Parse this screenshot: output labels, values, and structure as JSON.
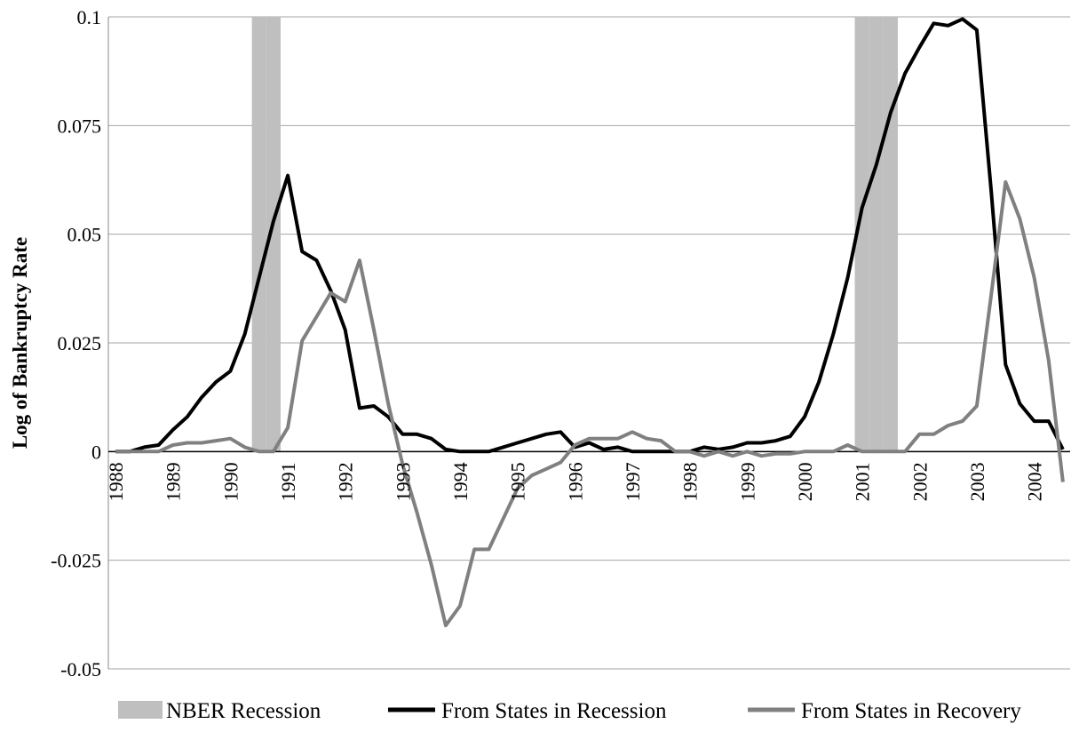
{
  "chart_data": {
    "type": "line",
    "y_label": "Log of Bankruptcy Rate",
    "categories": [
      "1988",
      null,
      null,
      null,
      "1989",
      null,
      null,
      null,
      "1990",
      null,
      null,
      null,
      "1991",
      null,
      null,
      null,
      "1992",
      null,
      null,
      null,
      "1993",
      null,
      null,
      null,
      "1994",
      null,
      null,
      null,
      "1995",
      null,
      null,
      null,
      "1996",
      null,
      null,
      null,
      "1997",
      null,
      null,
      null,
      "1998",
      null,
      null,
      null,
      "1999",
      null,
      null,
      null,
      "2000",
      null,
      null,
      null,
      "2001",
      null,
      null,
      null,
      "2002",
      null,
      null,
      null,
      "2003",
      null,
      null,
      null,
      "2004",
      null,
      null
    ],
    "series": [
      {
        "name": "NBER Recession",
        "type": "bar",
        "color": "#bfbfbf",
        "values": [
          null,
          null,
          null,
          null,
          null,
          null,
          null,
          null,
          null,
          null,
          0.1,
          0.1,
          null,
          null,
          null,
          null,
          null,
          null,
          null,
          null,
          null,
          null,
          null,
          null,
          null,
          null,
          null,
          null,
          null,
          null,
          null,
          null,
          null,
          null,
          null,
          null,
          null,
          null,
          null,
          null,
          null,
          null,
          null,
          null,
          null,
          null,
          null,
          null,
          null,
          null,
          null,
          null,
          0.1,
          0.1,
          0.1,
          null,
          null,
          null,
          null,
          null,
          null,
          null,
          null,
          null,
          null,
          null,
          null
        ]
      },
      {
        "name": "From States in Recession",
        "type": "line",
        "color": "#000000",
        "values": [
          0,
          0,
          0.001,
          0.0015,
          0.005,
          0.008,
          0.0125,
          0.016,
          0.0185,
          0.027,
          0.04,
          0.053,
          0.0635,
          0.046,
          0.044,
          0.037,
          0.028,
          0.01,
          0.0105,
          0.008,
          0.004,
          0.004,
          0.003,
          0.0005,
          0,
          0,
          0,
          0.001,
          0.002,
          0.003,
          0.004,
          0.0045,
          0.001,
          0.002,
          0.0005,
          0.001,
          0,
          0,
          0,
          0,
          0,
          0.001,
          0.0005,
          0.001,
          0.002,
          0.002,
          0.0025,
          0.0035,
          0.008,
          0.016,
          0.027,
          0.04,
          0.056,
          0.066,
          0.078,
          0.087,
          0.093,
          0.0985,
          0.098,
          0.0995,
          0.097,
          0.06,
          0.02,
          0.011,
          0.007,
          0.007,
          0.0005
        ]
      },
      {
        "name": "From States in Recovery",
        "type": "line",
        "color": "#808080",
        "values": [
          0,
          0,
          0,
          0,
          0.0015,
          0.002,
          0.002,
          0.0025,
          0.003,
          0.001,
          0,
          0,
          0.0055,
          0.0255,
          0.031,
          0.0365,
          0.0345,
          0.044,
          0.028,
          0.011,
          -0.003,
          -0.014,
          -0.026,
          -0.04,
          -0.0355,
          -0.0225,
          -0.0225,
          -0.0155,
          -0.0085,
          -0.0055,
          -0.004,
          -0.0025,
          0.0015,
          0.003,
          0.003,
          0.003,
          0.0045,
          0.003,
          0.0025,
          0,
          0,
          -0.001,
          0,
          -0.001,
          0,
          -0.001,
          -0.0005,
          -0.0005,
          0,
          0,
          0,
          0.0015,
          0,
          0,
          0,
          0,
          0.004,
          0.004,
          0.006,
          0.007,
          0.0105,
          0.036,
          0.062,
          0.0535,
          0.04,
          0.021,
          -0.007
        ]
      }
    ],
    "ylim": [
      -0.05,
      0.1
    ],
    "yticks": [
      -0.05,
      -0.025,
      0,
      0.025,
      0.05,
      0.075,
      0.1
    ],
    "grid": true,
    "legend": "bottom"
  }
}
